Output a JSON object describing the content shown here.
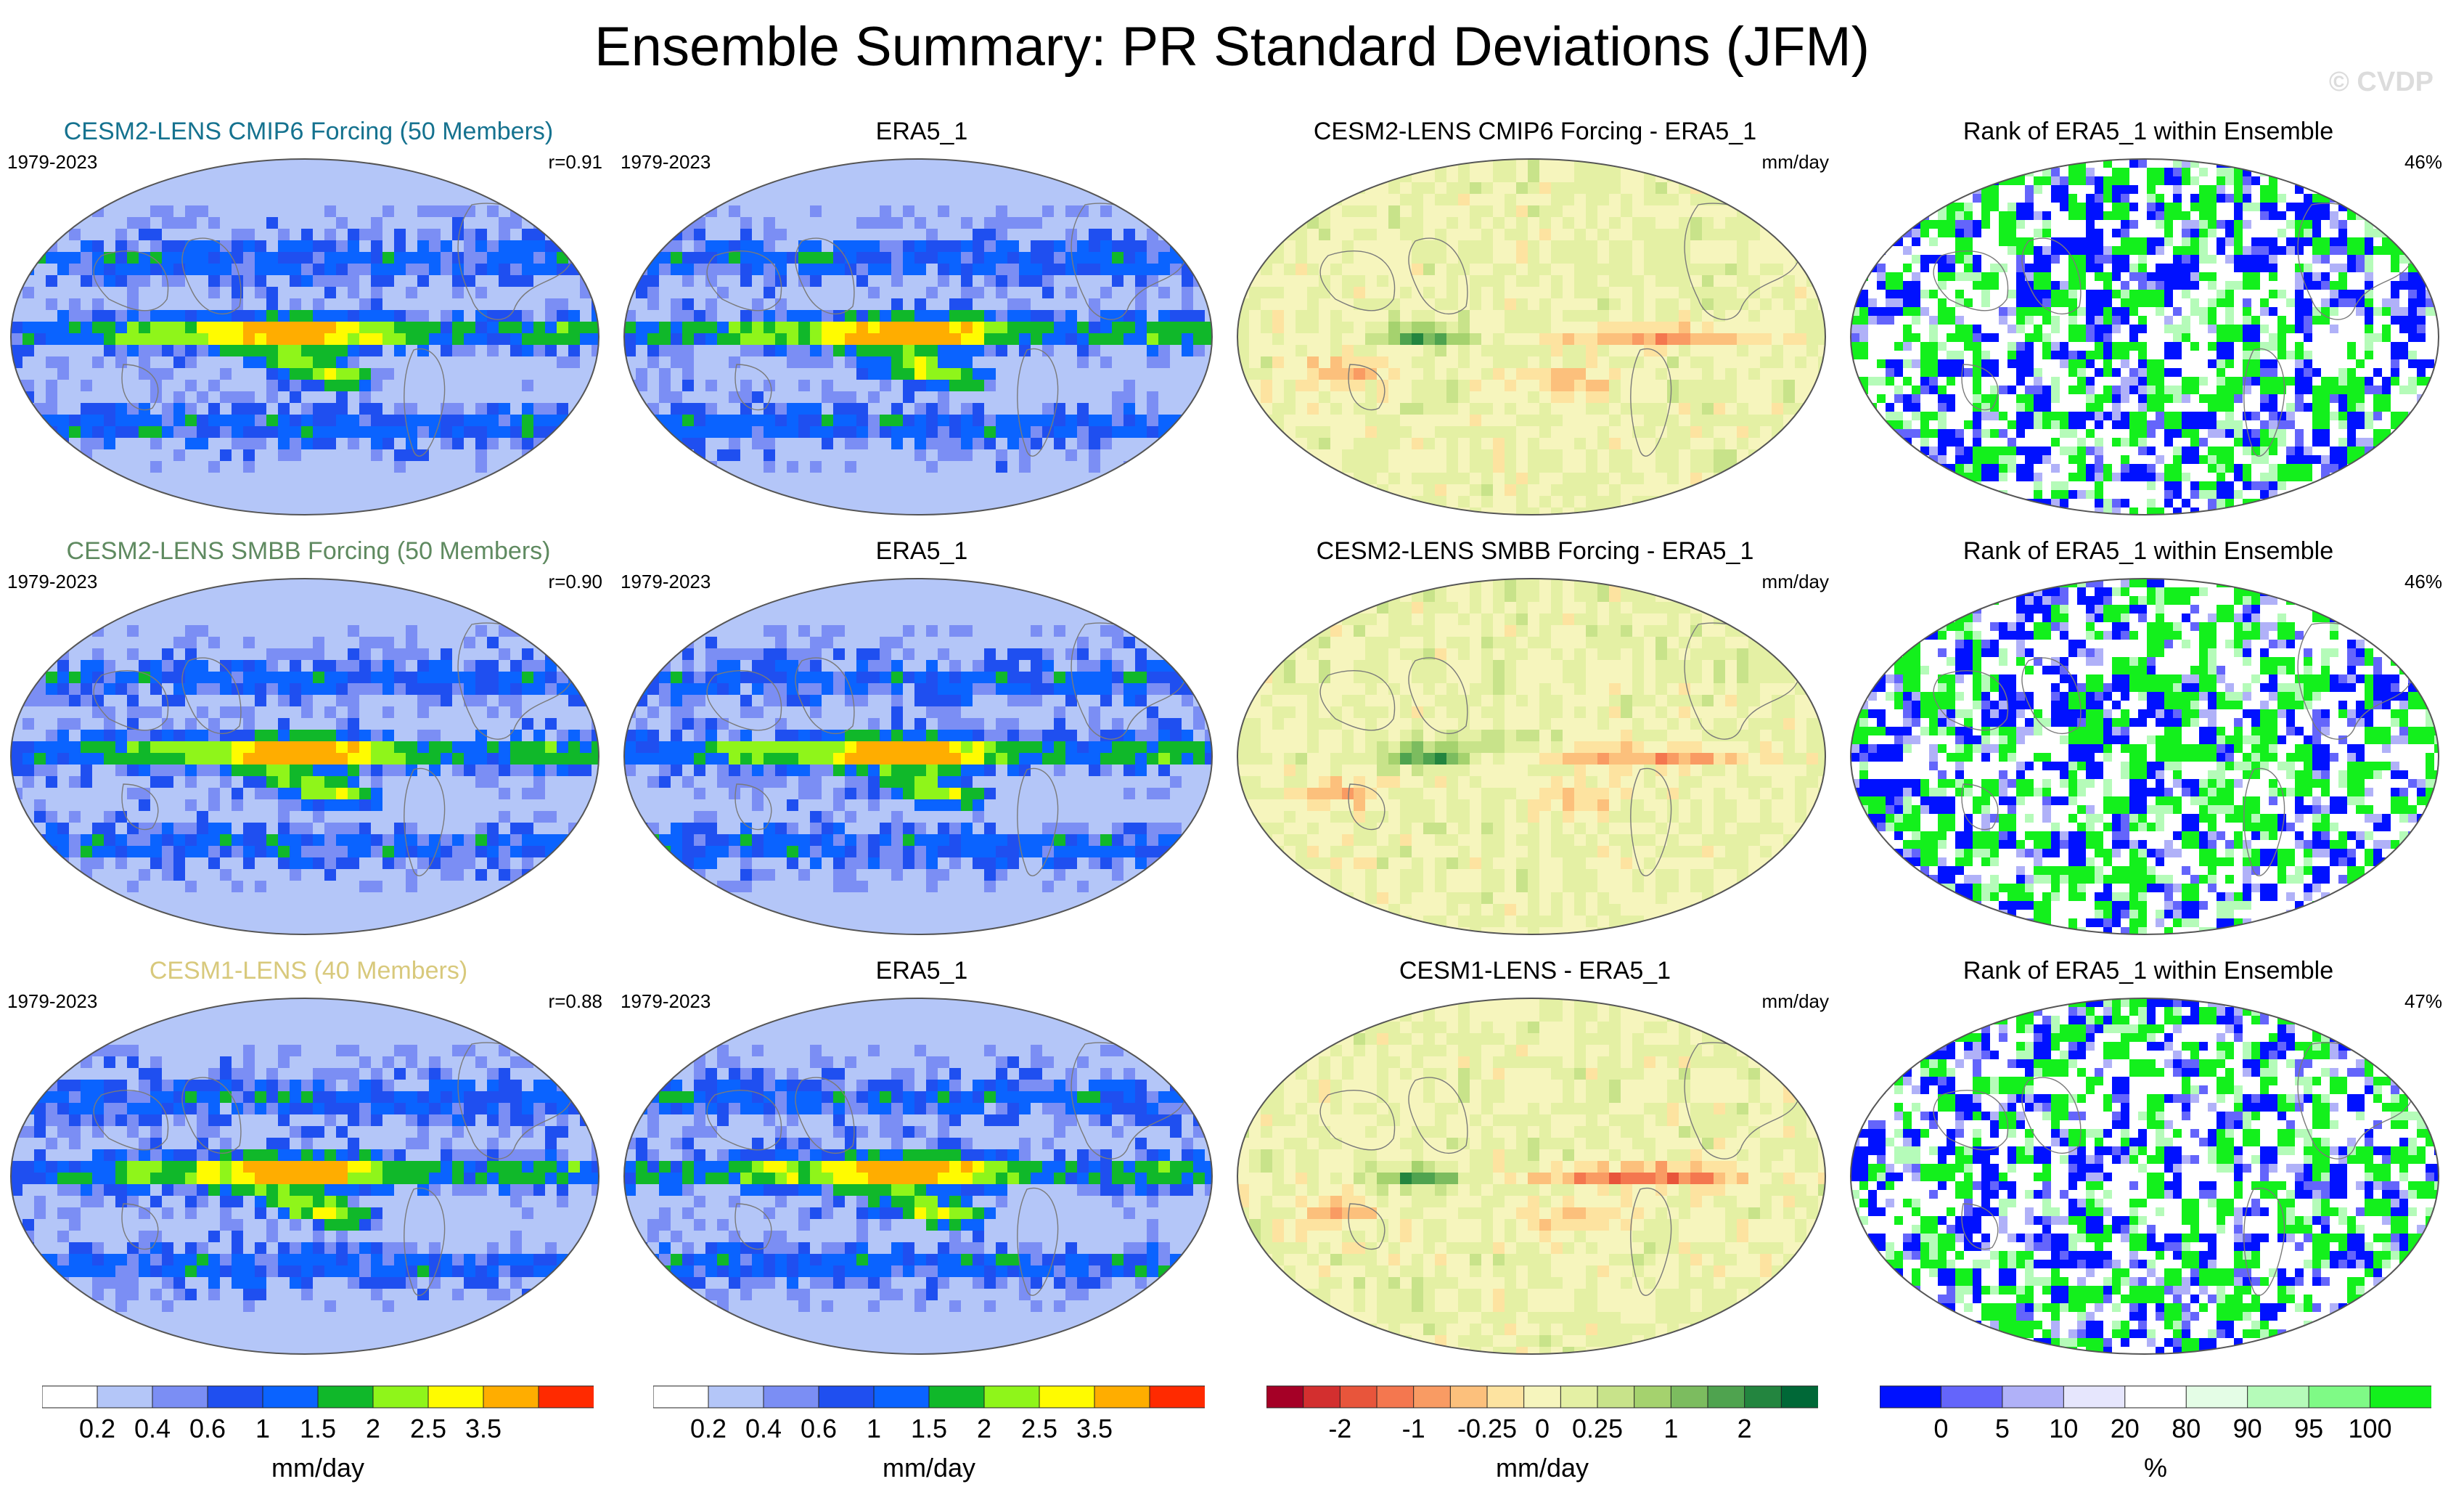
{
  "title": "Ensemble Summary: PR Standard Deviations (JFM)",
  "watermark": "© CVDP",
  "colors": {
    "row_titles": [
      "#15728f",
      "#5f8a60",
      "#d8c97c"
    ],
    "land": "#f7f7f7",
    "coast": "#7a7a7a"
  },
  "rows": [
    {
      "model": {
        "title": "CESM2-LENS CMIP6 Forcing (50 Members)",
        "period": "1979-2023",
        "corr": "r=0.91"
      },
      "obs": {
        "title": "ERA5_1",
        "period": "1979-2023"
      },
      "diff": {
        "title": "CESM2-LENS CMIP6 Forcing - ERA5_1",
        "units": "mm/day"
      },
      "rank": {
        "title": "Rank of ERA5_1 within Ensemble",
        "pct": "46%"
      }
    },
    {
      "model": {
        "title": "CESM2-LENS SMBB Forcing (50 Members)",
        "period": "1979-2023",
        "corr": "r=0.90"
      },
      "obs": {
        "title": "ERA5_1",
        "period": "1979-2023"
      },
      "diff": {
        "title": "CESM2-LENS SMBB Forcing - ERA5_1",
        "units": "mm/day"
      },
      "rank": {
        "title": "Rank of ERA5_1 within Ensemble",
        "pct": "46%"
      }
    },
    {
      "model": {
        "title": "CESM1-LENS (40 Members)",
        "period": "1979-2023",
        "corr": "r=0.88"
      },
      "obs": {
        "title": "ERA5_1",
        "period": "1979-2023"
      },
      "diff": {
        "title": "CESM1-LENS - ERA5_1",
        "units": "mm/day"
      },
      "rank": {
        "title": "Rank of ERA5_1 within Ensemble",
        "pct": "47%"
      }
    }
  ],
  "chart_data": [
    {
      "type": "heatmap",
      "role": "colorbar-std",
      "units": "mm/day",
      "colors": [
        "#ffffff",
        "#b4c6f8",
        "#7b8ef4",
        "#1f4ff0",
        "#0a63ff",
        "#10b82a",
        "#8ff51a",
        "#fffb00",
        "#ffad00",
        "#ff2a00"
      ],
      "tick_labels": [
        "0.2",
        "0.4",
        "0.6",
        "1",
        "1.5",
        "2",
        "2.5",
        "3.5"
      ]
    },
    {
      "type": "heatmap",
      "role": "colorbar-std",
      "units": "mm/day",
      "colors": [
        "#ffffff",
        "#b4c6f8",
        "#7b8ef4",
        "#1f4ff0",
        "#0a63ff",
        "#10b82a",
        "#8ff51a",
        "#fffb00",
        "#ffad00",
        "#ff2a00"
      ],
      "tick_labels": [
        "0.2",
        "0.4",
        "0.6",
        "1",
        "1.5",
        "2",
        "2.5",
        "3.5"
      ]
    },
    {
      "type": "heatmap",
      "role": "colorbar-diff",
      "units": "mm/day",
      "colors": [
        "#a50026",
        "#d32f2f",
        "#e8553b",
        "#f4774f",
        "#f99b63",
        "#fcc07c",
        "#fde3a0",
        "#f6f5bd",
        "#e4f0a4",
        "#c8e38a",
        "#a5d26e",
        "#7cbc5f",
        "#4fa34f",
        "#23853f",
        "#006837"
      ],
      "tick_labels": [
        "-2",
        "-1",
        "-0.25",
        "0",
        "0.25",
        "1",
        "2"
      ],
      "tick_positions": [
        2,
        4,
        6,
        7.5,
        9,
        11,
        13
      ]
    },
    {
      "type": "heatmap",
      "role": "colorbar-rank",
      "units": "%",
      "colors": [
        "#0011ff",
        "#6465fb",
        "#b0b1f8",
        "#e6e6fd",
        "#ffffff",
        "#e4fde6",
        "#b5fbb9",
        "#7ffa86",
        "#13f01c"
      ],
      "tick_labels": [
        "0",
        "5",
        "10",
        "20",
        "80",
        "90",
        "95",
        "100"
      ]
    }
  ]
}
